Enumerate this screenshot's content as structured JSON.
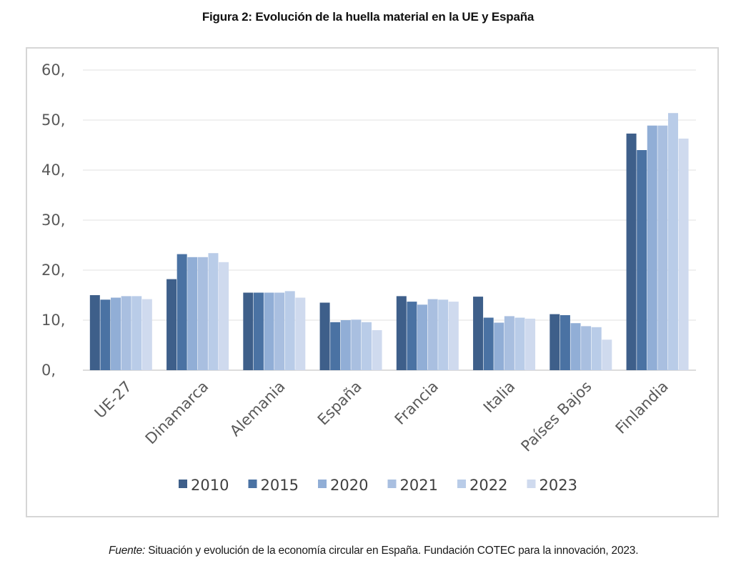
{
  "figure": {
    "title": "Figura 2: Evolución de la huella material en la UE y España",
    "source_label": "Fuente:",
    "source_text": " Situación y evolución de la economía circular en España. Fundación COTEC para la innovación, 2023."
  },
  "chart_data": {
    "type": "bar",
    "title": "",
    "xlabel": "",
    "ylabel": "",
    "ylim": [
      0,
      60
    ],
    "yticks": [
      0,
      10,
      20,
      30,
      40,
      50,
      60
    ],
    "ytick_labels": [
      "0,",
      "10,",
      "20,",
      "30,",
      "40,",
      "50,",
      "60,"
    ],
    "grid": true,
    "legend_position": "bottom",
    "categories": [
      "UE-27",
      "Dinamarca",
      "Alemania",
      "España",
      "Francia",
      "Italia",
      "Países Bajos",
      "Finlandia"
    ],
    "series": [
      {
        "name": "2010",
        "color": "#3e5f8a",
        "values": [
          15.0,
          18.2,
          15.5,
          13.5,
          14.8,
          14.7,
          11.2,
          47.3
        ]
      },
      {
        "name": "2015",
        "color": "#4a72a3",
        "values": [
          14.1,
          23.2,
          15.5,
          9.6,
          13.7,
          10.5,
          11.0,
          44.0
        ]
      },
      {
        "name": "2020",
        "color": "#91aed6",
        "values": [
          14.5,
          22.6,
          15.5,
          10.0,
          13.1,
          9.5,
          9.4,
          48.9
        ]
      },
      {
        "name": "2021",
        "color": "#a9bfe0",
        "values": [
          14.8,
          22.6,
          15.5,
          10.1,
          14.2,
          10.8,
          8.8,
          48.9
        ]
      },
      {
        "name": "2022",
        "color": "#b9cce8",
        "values": [
          14.8,
          23.4,
          15.8,
          9.6,
          14.1,
          10.5,
          8.6,
          51.4
        ]
      },
      {
        "name": "2023",
        "color": "#cfdaee",
        "values": [
          14.2,
          21.6,
          14.5,
          8.0,
          13.7,
          10.3,
          6.1,
          46.3
        ]
      }
    ]
  }
}
